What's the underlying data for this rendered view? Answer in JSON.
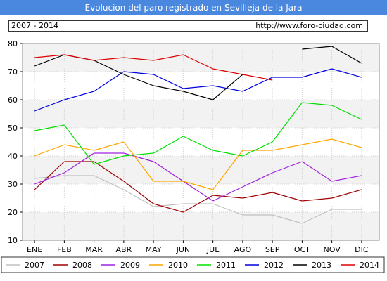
{
  "header": {
    "title": "Evolucion del paro registrado en Sevilleja de la Jara",
    "period": "2007 - 2014",
    "url": "http://www.foro-ciudad.com"
  },
  "colors": {
    "title_bar": "#4a88e0",
    "plot_band": "#f2f2f2"
  },
  "chart_data": {
    "type": "line",
    "title": "Evolucion del paro registrado en Sevilleja de la Jara",
    "xlabel": "",
    "ylabel": "",
    "categories": [
      "ENE",
      "FEB",
      "MAR",
      "ABR",
      "MAY",
      "JUN",
      "JUL",
      "AGO",
      "SEP",
      "OCT",
      "NOV",
      "DIC"
    ],
    "ylim": [
      10,
      80
    ],
    "yticks": [
      10,
      20,
      30,
      40,
      50,
      60,
      70,
      80
    ],
    "grid": true,
    "legend_position": "bottom",
    "series": [
      {
        "name": "2007",
        "color": "#c0c0c0",
        "values": [
          32,
          33,
          33,
          28,
          22,
          23,
          23,
          19,
          19,
          16,
          21,
          21
        ]
      },
      {
        "name": "2008",
        "color": "#a00000",
        "values": [
          28,
          38,
          38,
          31,
          23,
          20,
          26,
          25,
          27,
          24,
          25,
          28
        ]
      },
      {
        "name": "2009",
        "color": "#a020e0",
        "values": [
          30,
          34,
          41,
          41,
          38,
          31,
          24,
          29,
          34,
          38,
          31,
          33
        ]
      },
      {
        "name": "2010",
        "color": "#ffa500",
        "values": [
          40,
          44,
          42,
          45,
          31,
          31,
          28,
          42,
          42,
          44,
          46,
          43
        ]
      },
      {
        "name": "2011",
        "color": "#00e000",
        "values": [
          49,
          51,
          37,
          40,
          41,
          47,
          42,
          40,
          45,
          59,
          58,
          53
        ]
      },
      {
        "name": "2012",
        "color": "#0000e0",
        "values": [
          56,
          60,
          63,
          70,
          69,
          64,
          65,
          63,
          68,
          68,
          71,
          68
        ]
      },
      {
        "name": "2013",
        "color": "#000000",
        "values": [
          72,
          76,
          74,
          69,
          65,
          63,
          60,
          69,
          null,
          78,
          79,
          73
        ]
      },
      {
        "name": "2014",
        "color": "#e00000",
        "values": [
          75,
          76,
          74,
          75,
          74,
          76,
          71,
          69,
          67,
          null,
          null,
          null
        ]
      }
    ]
  }
}
